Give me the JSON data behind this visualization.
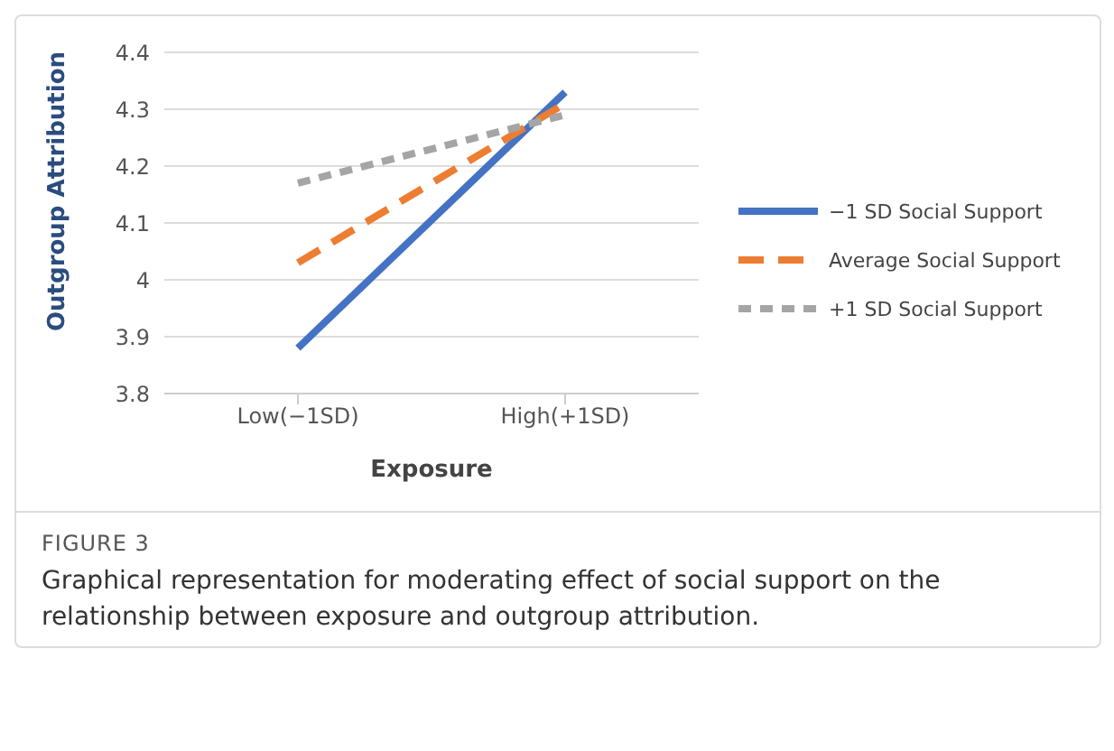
{
  "chart_data": {
    "type": "line",
    "xlabel": "Exposure",
    "ylabel": "Outgroup Attribution",
    "categories": [
      "Low(−1SD)",
      "High(+1SD)"
    ],
    "series": [
      {
        "name": "−1 SD Social Support",
        "color": "#4472c4",
        "line_style": "solid",
        "values": [
          3.88,
          4.33
        ]
      },
      {
        "name": "Average Social Support",
        "color": "#ed7d31",
        "line_style": "dashed",
        "values": [
          4.03,
          4.31
        ]
      },
      {
        "name": "+1 SD Social Support",
        "color": "#a5a5a5",
        "line_style": "dotted",
        "values": [
          4.17,
          4.29
        ]
      }
    ],
    "ylim": [
      3.8,
      4.4
    ],
    "yticks": [
      3.8,
      3.9,
      4,
      4.1,
      4.2,
      4.3,
      4.4
    ],
    "grid": "y",
    "legend": "right",
    "marker": "none",
    "annotations": [
      "FIGURE 3",
      "Graphical representation for moderating effect of social support on the relationship between exposure and outgroup attribution."
    ]
  }
}
